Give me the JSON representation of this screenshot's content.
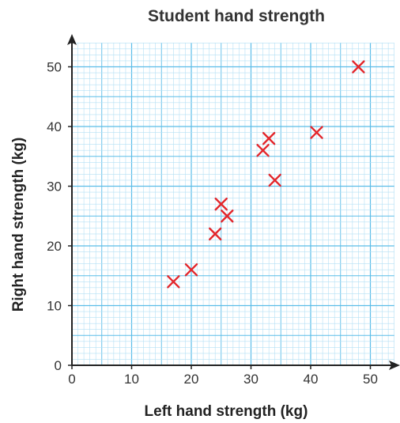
{
  "chart_data": {
    "type": "scatter",
    "title": "Student hand strength",
    "xlabel": "Left hand strength (kg)",
    "ylabel": "Right hand strength (kg)",
    "xlim": [
      0,
      54
    ],
    "ylim": [
      0,
      54
    ],
    "xticks": [
      0,
      10,
      20,
      30,
      40,
      50
    ],
    "yticks": [
      0,
      10,
      20,
      30,
      40,
      50
    ],
    "grid": true,
    "marker": "x",
    "colors": {
      "marker": "#e3262b",
      "grid_minor": "#b4e0f5",
      "grid_major": "#5bbde8",
      "axis": "#222222"
    },
    "series": [
      {
        "points": [
          {
            "x": 17,
            "y": 14
          },
          {
            "x": 20,
            "y": 16
          },
          {
            "x": 24,
            "y": 22
          },
          {
            "x": 25,
            "y": 27
          },
          {
            "x": 26,
            "y": 25
          },
          {
            "x": 32,
            "y": 36
          },
          {
            "x": 33,
            "y": 38
          },
          {
            "x": 34,
            "y": 31
          },
          {
            "x": 41,
            "y": 39
          },
          {
            "x": 48,
            "y": 50
          }
        ]
      }
    ]
  }
}
